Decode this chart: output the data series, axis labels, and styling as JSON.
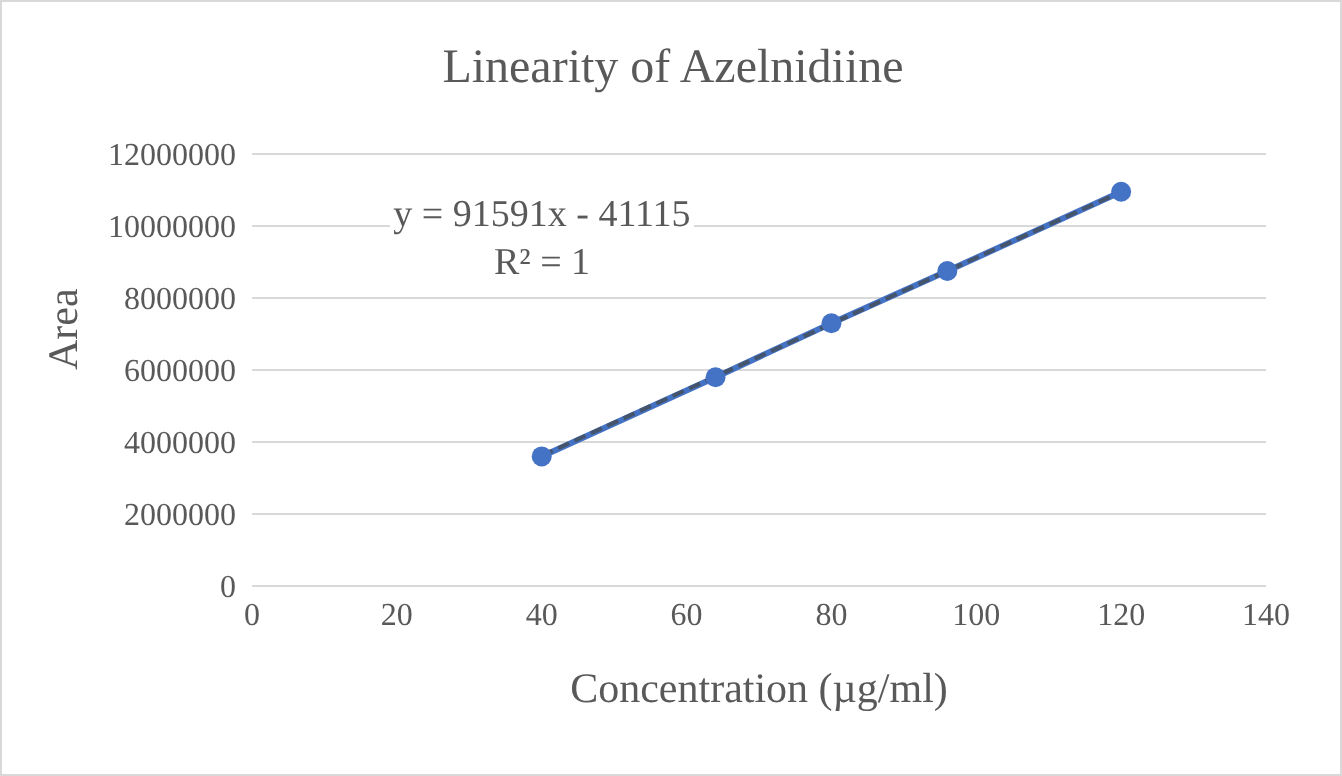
{
  "chart_data": {
    "type": "line",
    "title": "Linearity  of Azelnidiine",
    "xlabel": "Concentration (µg/ml)",
    "ylabel": "Area",
    "x": [
      40,
      64,
      80,
      96,
      120
    ],
    "series": [
      {
        "color": "#4472c4",
        "values": [
          3600000,
          5800000,
          7300000,
          8750000,
          10950000
        ],
        "marker": "circle",
        "line_style": "solid"
      },
      {
        "type": "line",
        "color": "#44546a",
        "x": [
          40,
          120
        ],
        "values": [
          3620000,
          10950000
        ],
        "marker": "none",
        "line_style": "dashed"
      }
    ],
    "annotations": [
      "y = 91591x - 41115",
      "R² = 1"
    ],
    "xlim": [
      0,
      140
    ],
    "xticks": [
      0,
      20,
      40,
      60,
      80,
      100,
      120,
      140
    ],
    "ylim": [
      0,
      12000000
    ],
    "yticks": [
      0,
      2000000,
      4000000,
      6000000,
      8000000,
      10000000,
      12000000
    ],
    "grid": "y"
  }
}
